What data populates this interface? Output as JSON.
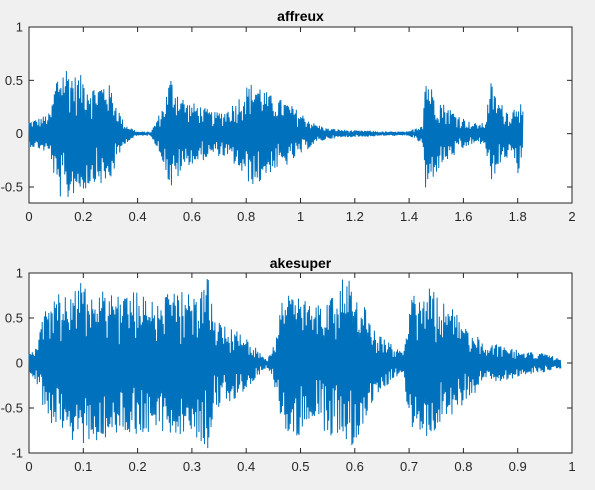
{
  "figure": {
    "background": "#f0f0f0",
    "axes_background": "#ffffff",
    "axis_color": "#262626",
    "line_color": "#0072bd"
  },
  "chart_data": [
    {
      "type": "line",
      "title": "affreux",
      "xlabel": "",
      "ylabel": "",
      "xlim": [
        0,
        2
      ],
      "ylim": [
        -0.65,
        1
      ],
      "xticks": [
        0,
        0.2,
        0.4,
        0.6,
        0.8,
        1,
        1.2,
        1.4,
        1.6,
        1.8,
        2
      ],
      "xtick_labels": [
        "0",
        "0.2",
        "0.4",
        "0.6",
        "0.8",
        "1",
        "1.2",
        "1.4",
        "1.6",
        "1.8",
        "2"
      ],
      "yticks": [
        -0.5,
        0,
        0.5,
        1
      ],
      "ytick_labels": [
        "-0.5",
        "0",
        "0.5",
        "1"
      ],
      "grid": false,
      "legend": "none",
      "series": [
        {
          "x": [
            0,
            0.04,
            0.08,
            0.1,
            0.12,
            0.14,
            0.17,
            0.2,
            0.24,
            0.28,
            0.3,
            0.32,
            0.35,
            0.38,
            0.4,
            0.45,
            0.5,
            0.52,
            0.54,
            0.58,
            0.62,
            0.68,
            0.72,
            0.76,
            0.8,
            0.84,
            0.88,
            0.9,
            0.95,
            1,
            1.05,
            1.1,
            1.15,
            1.2,
            1.25,
            1.3,
            1.35,
            1.4,
            1.45,
            1.46,
            1.48,
            1.52,
            1.56,
            1.6,
            1.63,
            1.68,
            1.7,
            1.72,
            1.75,
            1.78,
            1.8,
            1.82
          ],
          "y": [
            0.12,
            0.15,
            0.2,
            0.55,
            0.62,
            0.65,
            0.55,
            0.55,
            0.45,
            0.5,
            0.45,
            0.3,
            0.1,
            0.05,
            0.02,
            0.02,
            0.3,
            0.55,
            0.45,
            0.3,
            0.28,
            0.2,
            0.22,
            0.3,
            0.45,
            0.5,
            0.38,
            0.35,
            0.3,
            0.2,
            0.1,
            0.05,
            0.04,
            0.03,
            0.03,
            0.02,
            0.02,
            0.02,
            0.1,
            0.6,
            0.45,
            0.3,
            0.22,
            0.15,
            0.1,
            0.1,
            0.5,
            0.35,
            0.25,
            0.2,
            0.4,
            0.2
          ]
        }
      ]
    },
    {
      "type": "line",
      "title": "akesuper",
      "xlabel": "",
      "ylabel": "",
      "xlim": [
        0,
        1
      ],
      "ylim": [
        -1,
        1
      ],
      "xticks": [
        0,
        0.1,
        0.2,
        0.3,
        0.4,
        0.5,
        0.6,
        0.7,
        0.8,
        0.9,
        1
      ],
      "xtick_labels": [
        "0",
        "0.1",
        "0.2",
        "0.3",
        "0.4",
        "0.5",
        "0.6",
        "0.7",
        "0.8",
        "0.9",
        "1"
      ],
      "yticks": [
        -1,
        -0.5,
        0,
        0.5,
        1
      ],
      "ytick_labels": [
        "-1",
        "-0.5",
        "0",
        "0.5",
        "1"
      ],
      "grid": false,
      "legend": "none",
      "series": [
        {
          "x": [
            0,
            0.01,
            0.02,
            0.03,
            0.05,
            0.07,
            0.1,
            0.13,
            0.16,
            0.2,
            0.24,
            0.28,
            0.31,
            0.33,
            0.34,
            0.36,
            0.38,
            0.4,
            0.42,
            0.44,
            0.45,
            0.47,
            0.5,
            0.52,
            0.54,
            0.56,
            0.58,
            0.6,
            0.62,
            0.64,
            0.66,
            0.68,
            0.69,
            0.7,
            0.72,
            0.74,
            0.76,
            0.78,
            0.8,
            0.82,
            0.84,
            0.86,
            0.88,
            0.9,
            0.92,
            0.94,
            0.96,
            0.98
          ],
          "y": [
            0.1,
            0.2,
            0.35,
            0.6,
            0.75,
            0.85,
            0.9,
            0.85,
            0.8,
            0.8,
            0.75,
            0.8,
            0.85,
            0.95,
            0.55,
            0.45,
            0.4,
            0.3,
            0.15,
            0.05,
            0.2,
            0.85,
            0.8,
            0.6,
            0.75,
            0.85,
            0.95,
            0.9,
            0.6,
            0.35,
            0.25,
            0.15,
            0.1,
            0.75,
            0.9,
            0.85,
            0.7,
            0.6,
            0.45,
            0.35,
            0.18,
            0.22,
            0.2,
            0.15,
            0.12,
            0.12,
            0.08,
            0.06
          ]
        }
      ]
    }
  ]
}
